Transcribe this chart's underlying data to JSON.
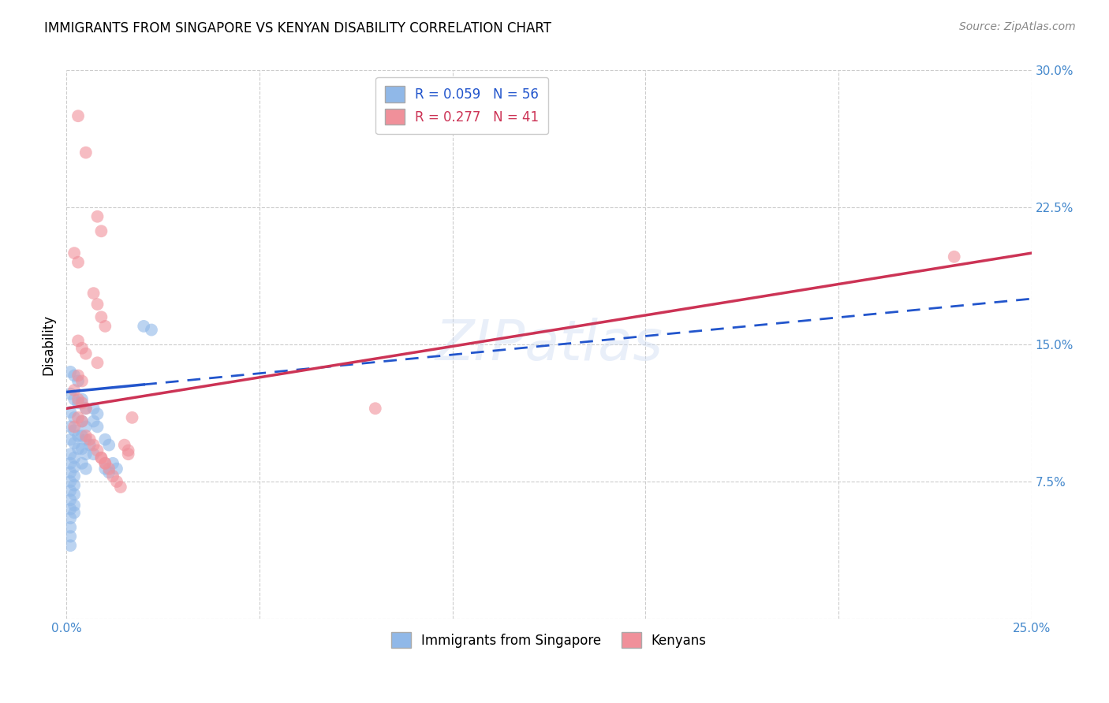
{
  "title": "IMMIGRANTS FROM SINGAPORE VS KENYAN DISABILITY CORRELATION CHART",
  "source": "Source: ZipAtlas.com",
  "ylabel": "Disability",
  "xlabel": "",
  "xlim": [
    0.0,
    0.25
  ],
  "ylim": [
    0.0,
    0.3
  ],
  "xticks": [
    0.0,
    0.05,
    0.1,
    0.15,
    0.2,
    0.25
  ],
  "yticks": [
    0.0,
    0.075,
    0.15,
    0.225,
    0.3
  ],
  "xtick_labels": [
    "0.0%",
    "",
    "",
    "",
    "",
    "25.0%"
  ],
  "ytick_labels": [
    "",
    "7.5%",
    "15.0%",
    "22.5%",
    "30.0%"
  ],
  "legend_label_blue": "R = 0.059   N = 56",
  "legend_label_pink": "R = 0.277   N = 41",
  "legend_labels_bottom": [
    "Immigrants from Singapore",
    "Kenyans"
  ],
  "watermark": "ZIPatlas",
  "blue_color": "#90b8e8",
  "pink_color": "#f0909a",
  "line_blue_color": "#2255cc",
  "line_pink_color": "#cc3355",
  "blue_scatter": [
    [
      0.001,
      0.135
    ],
    [
      0.002,
      0.133
    ],
    [
      0.003,
      0.13
    ],
    [
      0.001,
      0.123
    ],
    [
      0.002,
      0.12
    ],
    [
      0.003,
      0.118
    ],
    [
      0.001,
      0.113
    ],
    [
      0.002,
      0.11
    ],
    [
      0.001,
      0.105
    ],
    [
      0.002,
      0.103
    ],
    [
      0.003,
      0.1
    ],
    [
      0.001,
      0.098
    ],
    [
      0.002,
      0.096
    ],
    [
      0.003,
      0.093
    ],
    [
      0.001,
      0.09
    ],
    [
      0.002,
      0.088
    ],
    [
      0.001,
      0.085
    ],
    [
      0.002,
      0.083
    ],
    [
      0.001,
      0.08
    ],
    [
      0.002,
      0.078
    ],
    [
      0.001,
      0.075
    ],
    [
      0.002,
      0.073
    ],
    [
      0.001,
      0.07
    ],
    [
      0.002,
      0.068
    ],
    [
      0.001,
      0.065
    ],
    [
      0.002,
      0.062
    ],
    [
      0.001,
      0.06
    ],
    [
      0.002,
      0.058
    ],
    [
      0.001,
      0.055
    ],
    [
      0.001,
      0.05
    ],
    [
      0.001,
      0.045
    ],
    [
      0.001,
      0.04
    ],
    [
      0.004,
      0.12
    ],
    [
      0.005,
      0.115
    ],
    [
      0.004,
      0.108
    ],
    [
      0.005,
      0.105
    ],
    [
      0.004,
      0.1
    ],
    [
      0.005,
      0.098
    ],
    [
      0.004,
      0.093
    ],
    [
      0.005,
      0.09
    ],
    [
      0.004,
      0.085
    ],
    [
      0.005,
      0.082
    ],
    [
      0.007,
      0.115
    ],
    [
      0.008,
      0.112
    ],
    [
      0.007,
      0.108
    ],
    [
      0.008,
      0.105
    ],
    [
      0.006,
      0.095
    ],
    [
      0.007,
      0.09
    ],
    [
      0.01,
      0.082
    ],
    [
      0.011,
      0.08
    ],
    [
      0.012,
      0.085
    ],
    [
      0.013,
      0.082
    ],
    [
      0.01,
      0.098
    ],
    [
      0.011,
      0.095
    ],
    [
      0.02,
      0.16
    ],
    [
      0.022,
      0.158
    ]
  ],
  "pink_scatter": [
    [
      0.003,
      0.275
    ],
    [
      0.005,
      0.255
    ],
    [
      0.008,
      0.22
    ],
    [
      0.009,
      0.212
    ],
    [
      0.002,
      0.2
    ],
    [
      0.003,
      0.195
    ],
    [
      0.007,
      0.178
    ],
    [
      0.008,
      0.172
    ],
    [
      0.009,
      0.165
    ],
    [
      0.01,
      0.16
    ],
    [
      0.003,
      0.152
    ],
    [
      0.004,
      0.148
    ],
    [
      0.005,
      0.145
    ],
    [
      0.008,
      0.14
    ],
    [
      0.003,
      0.133
    ],
    [
      0.004,
      0.13
    ],
    [
      0.002,
      0.125
    ],
    [
      0.003,
      0.12
    ],
    [
      0.004,
      0.118
    ],
    [
      0.005,
      0.115
    ],
    [
      0.003,
      0.11
    ],
    [
      0.004,
      0.108
    ],
    [
      0.002,
      0.105
    ],
    [
      0.005,
      0.1
    ],
    [
      0.006,
      0.098
    ],
    [
      0.007,
      0.095
    ],
    [
      0.008,
      0.092
    ],
    [
      0.009,
      0.088
    ],
    [
      0.01,
      0.085
    ],
    [
      0.011,
      0.082
    ],
    [
      0.012,
      0.078
    ],
    [
      0.013,
      0.075
    ],
    [
      0.014,
      0.072
    ],
    [
      0.015,
      0.095
    ],
    [
      0.016,
      0.092
    ],
    [
      0.009,
      0.088
    ],
    [
      0.01,
      0.085
    ],
    [
      0.016,
      0.09
    ],
    [
      0.017,
      0.11
    ],
    [
      0.08,
      0.115
    ],
    [
      0.23,
      0.198
    ]
  ],
  "blue_line_x0": 0.0,
  "blue_line_x_solid_end": 0.02,
  "blue_line_x_end": 0.25,
  "blue_line_y_at_0": 0.124,
  "blue_line_y_at_end": 0.175,
  "pink_line_x0": 0.0,
  "pink_line_x_end": 0.25,
  "pink_line_y_at_0": 0.115,
  "pink_line_y_at_end": 0.2,
  "title_fontsize": 12,
  "axis_label_fontsize": 12,
  "tick_fontsize": 11,
  "legend_fontsize": 12,
  "source_fontsize": 10,
  "background_color": "#ffffff",
  "grid_color": "#cccccc"
}
